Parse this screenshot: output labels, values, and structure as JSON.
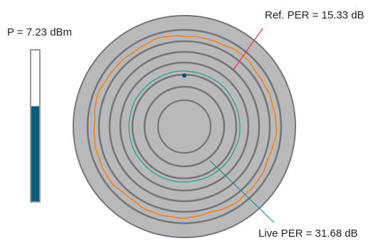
{
  "power": {
    "label": "P = 7.23 dBm",
    "fill_fraction": 0.63,
    "fill_color": "#0e5a78"
  },
  "chart_data": {
    "type": "polar-trace",
    "title": "",
    "annotations": {
      "ref_per": "Ref. PER = 15.33 dB",
      "live_per": "Live PER = 31.68 dB"
    },
    "rings": 6,
    "series": [
      {
        "key": "reference",
        "color": "#ff7a00",
        "relative_radius": 0.82,
        "ripple": 0.018
      },
      {
        "key": "live",
        "color": "#1aa08a",
        "relative_radius": 0.5,
        "ripple": 0.006
      }
    ],
    "marker": {
      "angle_deg": 90,
      "color": "#0f4a66"
    },
    "colors": {
      "disc": "#b9b9bb",
      "rings": "#767678",
      "ref_leader": "#e0303a",
      "live_leader": "#138c8c"
    }
  }
}
